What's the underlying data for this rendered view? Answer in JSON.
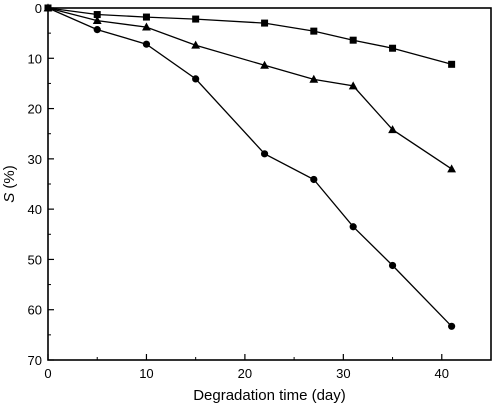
{
  "chart_data": {
    "type": "line",
    "xlabel": "Degradation time (day)",
    "ylabel_symbol": "S",
    "ylabel_unit": " (%)",
    "xlim": [
      0,
      45
    ],
    "ylim": [
      0,
      70
    ],
    "y_inverted": true,
    "x_ticks": [
      0,
      10,
      20,
      30,
      40
    ],
    "y_ticks": [
      0,
      10,
      20,
      30,
      40,
      50,
      60,
      70
    ],
    "grid": false,
    "legend": "none",
    "series": [
      {
        "marker": "square",
        "x": [
          0,
          5,
          10,
          15,
          22,
          27,
          31,
          35,
          41
        ],
        "values": [
          0,
          1.3,
          1.8,
          2.2,
          3.0,
          4.6,
          6.4,
          8.0,
          11.2
        ]
      },
      {
        "marker": "triangle",
        "x": [
          0,
          5,
          10,
          15,
          22,
          27,
          31,
          35,
          41
        ],
        "values": [
          0,
          2.5,
          3.8,
          7.4,
          11.4,
          14.2,
          15.5,
          24.2,
          32.0
        ]
      },
      {
        "marker": "circle",
        "x": [
          0,
          5,
          10,
          15,
          22,
          27,
          31,
          35,
          41
        ],
        "values": [
          0,
          4.3,
          7.2,
          14.1,
          29.0,
          34.1,
          43.5,
          51.2,
          63.3
        ]
      }
    ]
  }
}
